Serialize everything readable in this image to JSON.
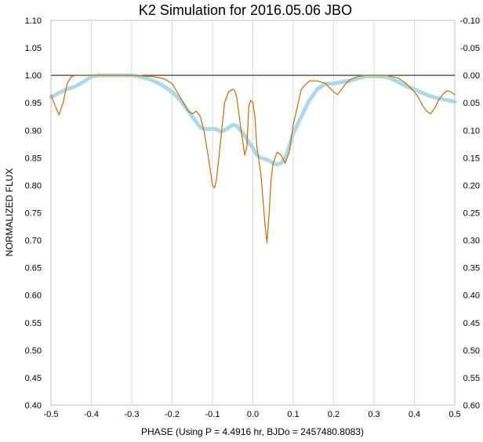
{
  "chart_data": {
    "type": "line",
    "title": "K2 Simulation for 2016.05.06 JBO",
    "xlabel": "PHASE (Using P = 4.4916 hr, BJDo = 2457480.8083)",
    "ylabel": "NORMALIZED FLUX",
    "xlim": [
      -0.5,
      0.5
    ],
    "ylim": [
      0.4,
      1.1
    ],
    "y2lim": [
      -0.1,
      0.6
    ],
    "grid": "vertical",
    "legend": "none",
    "x_ticks": [
      "-0.5",
      "-0.4",
      "-0.3",
      "-0.2",
      "-0.1",
      "0.0",
      "0.1",
      "0.2",
      "0.3",
      "0.4",
      "0.5"
    ],
    "y_ticks": [
      "1.10",
      "1.05",
      "1.00",
      "0.95",
      "0.90",
      "0.85",
      "0.80",
      "0.75",
      "0.70",
      "0.65",
      "0.60",
      "0.55",
      "0.50",
      "0.45",
      "0.40"
    ],
    "y2_ticks": [
      "-0.10",
      "-0.05",
      "0.00",
      "0.05",
      "0.10",
      "0.15",
      "0.20",
      "0.25",
      "0.30",
      "0.35",
      "0.40",
      "0.45",
      "0.50",
      "0.55",
      "0.60"
    ],
    "reference_line": 1.0,
    "series": [
      {
        "color": "#C8690E",
        "style": "thin-line",
        "x": [
          -0.5,
          -0.49,
          -0.48,
          -0.47,
          -0.46,
          -0.45,
          -0.44,
          -0.42,
          -0.4,
          -0.35,
          -0.3,
          -0.25,
          -0.22,
          -0.2,
          -0.18,
          -0.16,
          -0.15,
          -0.14,
          -0.13,
          -0.12,
          -0.11,
          -0.1,
          -0.095,
          -0.09,
          -0.08,
          -0.07,
          -0.06,
          -0.05,
          -0.045,
          -0.04,
          -0.03,
          -0.02,
          -0.015,
          -0.01,
          -0.005,
          0.0,
          0.005,
          0.01,
          0.02,
          0.03,
          0.035,
          0.04,
          0.045,
          0.05,
          0.06,
          0.07,
          0.08,
          0.09,
          0.1,
          0.12,
          0.14,
          0.16,
          0.18,
          0.2,
          0.21,
          0.22,
          0.23,
          0.24,
          0.26,
          0.28,
          0.3,
          0.33,
          0.36,
          0.38,
          0.4,
          0.41,
          0.42,
          0.43,
          0.44,
          0.45,
          0.46,
          0.47,
          0.48,
          0.49,
          0.5
        ],
        "y": [
          0.965,
          0.945,
          0.928,
          0.95,
          0.985,
          0.997,
          1.0,
          1.0,
          1.0,
          1.0,
          1.0,
          0.998,
          0.994,
          0.985,
          0.96,
          0.935,
          0.93,
          0.935,
          0.925,
          0.895,
          0.85,
          0.8,
          0.795,
          0.81,
          0.88,
          0.95,
          0.97,
          0.975,
          0.972,
          0.96,
          0.905,
          0.855,
          0.87,
          0.945,
          0.955,
          0.95,
          0.925,
          0.87,
          0.82,
          0.73,
          0.695,
          0.745,
          0.81,
          0.84,
          0.86,
          0.855,
          0.84,
          0.86,
          0.91,
          0.975,
          0.99,
          0.99,
          0.985,
          0.97,
          0.965,
          0.975,
          0.985,
          0.992,
          0.998,
          1.0,
          1.0,
          1.0,
          0.995,
          0.985,
          0.97,
          0.96,
          0.945,
          0.935,
          0.93,
          0.94,
          0.955,
          0.965,
          0.972,
          0.97,
          0.965
        ]
      },
      {
        "color": "#ADD8E6",
        "style": "thick-points",
        "x": [
          -0.5,
          -0.48,
          -0.46,
          -0.44,
          -0.42,
          -0.4,
          -0.38,
          -0.35,
          -0.3,
          -0.28,
          -0.26,
          -0.24,
          -0.22,
          -0.2,
          -0.18,
          -0.16,
          -0.15,
          -0.14,
          -0.13,
          -0.12,
          -0.11,
          -0.1,
          -0.09,
          -0.08,
          -0.07,
          -0.06,
          -0.05,
          -0.04,
          -0.03,
          -0.02,
          -0.01,
          0.0,
          0.01,
          0.02,
          0.03,
          0.04,
          0.05,
          0.06,
          0.07,
          0.08,
          0.09,
          0.1,
          0.12,
          0.14,
          0.16,
          0.18,
          0.2,
          0.22,
          0.24,
          0.26,
          0.28,
          0.3,
          0.32,
          0.34,
          0.36,
          0.38,
          0.4,
          0.42,
          0.44,
          0.46,
          0.48,
          0.5
        ],
        "y": [
          0.96,
          0.968,
          0.975,
          0.98,
          0.988,
          0.998,
          1.0,
          1.0,
          1.0,
          0.998,
          0.994,
          0.988,
          0.98,
          0.97,
          0.955,
          0.935,
          0.925,
          0.915,
          0.905,
          0.903,
          0.902,
          0.903,
          0.902,
          0.898,
          0.9,
          0.905,
          0.91,
          0.908,
          0.9,
          0.89,
          0.878,
          0.868,
          0.855,
          0.85,
          0.848,
          0.845,
          0.84,
          0.838,
          0.84,
          0.85,
          0.87,
          0.895,
          0.925,
          0.955,
          0.975,
          0.985,
          0.985,
          0.988,
          0.99,
          0.995,
          0.998,
          0.998,
          0.998,
          0.995,
          0.988,
          0.98,
          0.975,
          0.968,
          0.962,
          0.958,
          0.955,
          0.952
        ]
      }
    ]
  }
}
